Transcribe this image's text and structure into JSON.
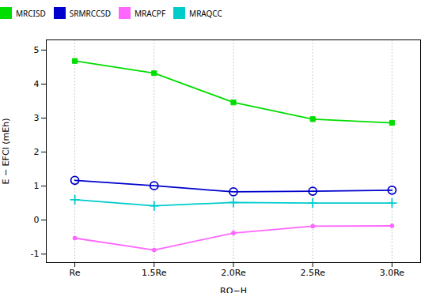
{
  "chart_data": {
    "type": "line",
    "x": [
      1,
      1.5,
      2.0,
      2.5,
      3.0
    ],
    "series": [
      {
        "name": "MRCISD",
        "color": "#00dd00",
        "marker": "square",
        "values": [
          4.68,
          4.32,
          3.46,
          2.97,
          2.86
        ]
      },
      {
        "name": "SRMRCCSD",
        "color": "#0000cc",
        "marker": "ring",
        "values": [
          1.17,
          1.01,
          0.83,
          0.85,
          0.88
        ]
      },
      {
        "name": "MRACPF",
        "color": "#ff66ff",
        "marker": "circle",
        "values": [
          -0.53,
          -0.88,
          -0.38,
          -0.18,
          -0.17
        ]
      },
      {
        "name": "MRAQCC",
        "color": "#00cccc",
        "marker": "plus",
        "values": [
          0.6,
          0.42,
          0.52,
          0.5,
          0.5
        ]
      }
    ],
    "x_label": "RO−H",
    "y_label": "E − EFCI (mEh)",
    "xlim": [
      0.82,
      3.18
    ],
    "xticks": [
      {
        "value": 1,
        "label": "Re"
      },
      {
        "value": 1.5,
        "label": "1.5Re"
      },
      {
        "value": 2.0,
        "label": "2.0Re"
      },
      {
        "value": 2.5,
        "label": "2.5Re"
      },
      {
        "value": 3.0,
        "label": "3.0Re"
      }
    ],
    "ylim": [
      -1.25,
      5.3
    ],
    "yticks": [
      -1,
      0,
      1,
      2,
      3,
      4,
      5
    ],
    "grid": "x",
    "legend": "top"
  }
}
